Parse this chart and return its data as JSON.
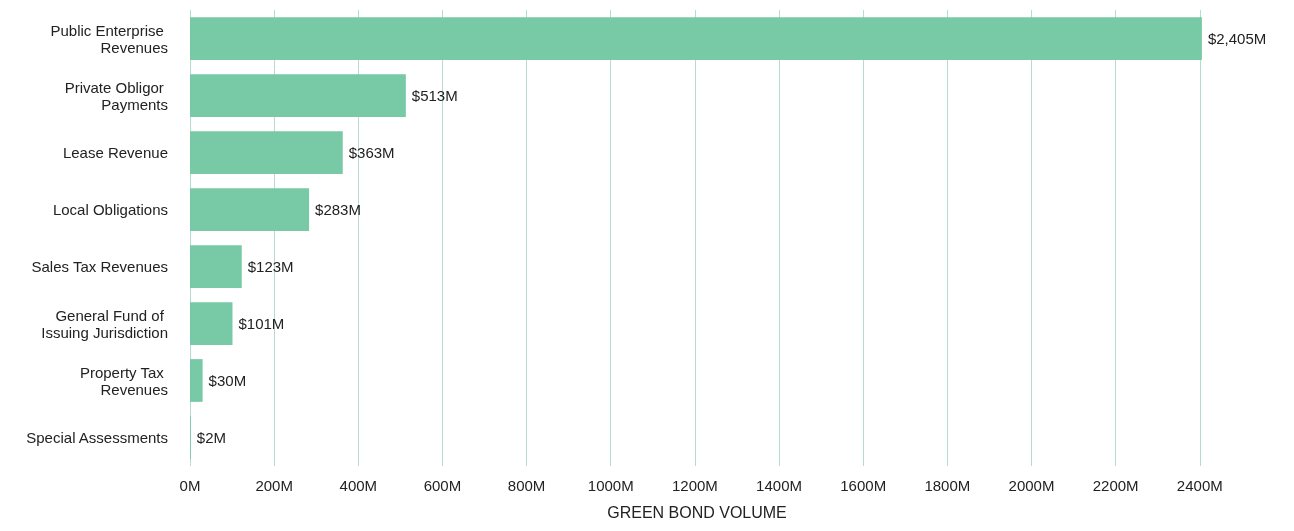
{
  "chart_data": {
    "type": "bar",
    "orientation": "horizontal",
    "xlabel": "GREEN BOND VOLUME",
    "categories": [
      "Public Enterprise Revenues",
      "Private Obligor Payments",
      "Lease Revenue",
      "Local Obligations",
      "Sales Tax Revenues",
      "General Fund of Issuing Jurisdiction",
      "Property Tax Revenues",
      "Special Assessments"
    ],
    "values": [
      2405,
      513,
      363,
      283,
      123,
      101,
      30,
      2
    ],
    "value_labels": [
      "$2,405M",
      "$513M",
      "$363M",
      "$283M",
      "$123M",
      "$101M",
      "$30M",
      "$2M"
    ],
    "color": "#78c9a5",
    "xlim": [
      0,
      2410
    ],
    "xticks": [
      {
        "value": 0,
        "label": "0M"
      },
      {
        "value": 200,
        "label": "200M"
      },
      {
        "value": 400,
        "label": "400M"
      },
      {
        "value": 600,
        "label": "600M"
      },
      {
        "value": 800,
        "label": "800M"
      },
      {
        "value": 1000,
        "label": "1000M"
      },
      {
        "value": 1200,
        "label": "1200M"
      },
      {
        "value": 1400,
        "label": "1400M"
      },
      {
        "value": 1600,
        "label": "1600M"
      },
      {
        "value": 1800,
        "label": "1800M"
      },
      {
        "value": 2000,
        "label": "2000M"
      },
      {
        "value": 2200,
        "label": "2200M"
      },
      {
        "value": 2400,
        "label": "2400M"
      }
    ],
    "grid": "x"
  }
}
